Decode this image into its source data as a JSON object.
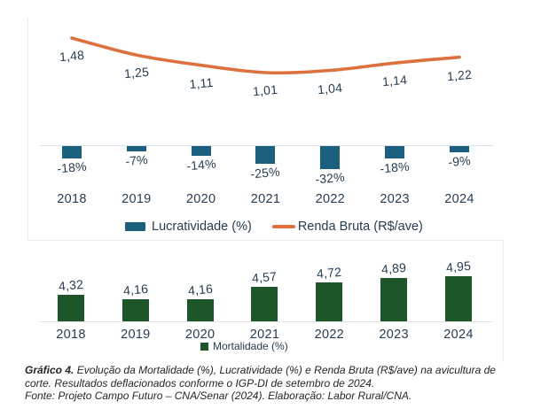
{
  "colors": {
    "lucratividade": "#1c6080",
    "renda_bruta": "#dd713e",
    "mortalidade": "#1d5628",
    "axis_text": "#243d55",
    "zero_line": "#d9e4ee",
    "base_line": "#e3e3e3",
    "frame": "#ececec"
  },
  "chart_data": [
    {
      "type": "combo-bar-line",
      "categories": [
        "2018",
        "2019",
        "2020",
        "2021",
        "2022",
        "2023",
        "2024"
      ],
      "series": [
        {
          "name": "Lucratividade (%)",
          "type": "bar",
          "color": "#1c6080",
          "values": [
            -18,
            -7,
            -14,
            -25,
            -32,
            -18,
            -9
          ],
          "labels": [
            "-18%",
            "-7%",
            "-14%",
            "-25%",
            "-32%",
            "-18%",
            "-9%"
          ]
        },
        {
          "name": "Renda Bruta (R$/ave)",
          "type": "line",
          "color": "#dd713e",
          "values": [
            1.48,
            1.25,
            1.11,
            1.01,
            1.04,
            1.14,
            1.22
          ],
          "labels": [
            "1,48",
            "1,25",
            "1,11",
            "1,01",
            "1,04",
            "1,14",
            "1,22"
          ]
        }
      ],
      "legend_position": "bottom",
      "grid": false,
      "bar_ylim": [
        -40,
        0
      ],
      "line_ylim": [
        0.9,
        1.6
      ]
    },
    {
      "type": "bar",
      "categories": [
        "2018",
        "2019",
        "2020",
        "2021",
        "2022",
        "2023",
        "2024"
      ],
      "series": [
        {
          "name": "Mortalidade (%)",
          "type": "bar",
          "color": "#1d5628",
          "values": [
            4.32,
            4.16,
            4.16,
            4.57,
            4.72,
            4.89,
            4.95
          ],
          "labels": [
            "4,32",
            "4,16",
            "4,16",
            "4,57",
            "4,72",
            "4,89",
            "4,95"
          ]
        }
      ],
      "legend_position": "bottom",
      "grid": false,
      "ylim": [
        3.43,
        5.1
      ]
    }
  ],
  "caption": {
    "label": "Gráfico 4.",
    "line1": "Evolução da Mortalidade (%), Lucratividade (%) e Renda Bruta (R$/ave) na avicultura de",
    "line2": "corte. Resultados deflacionados conforme o IGP-DI de setembro de 2024.",
    "line3": "Fonte: Projeto Campo Futuro – CNA/Senar (2024). Elaboração: Labor Rural/CNA."
  }
}
